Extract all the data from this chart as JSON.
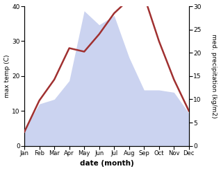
{
  "months": [
    "Jan",
    "Feb",
    "Mar",
    "Apr",
    "May",
    "Jun",
    "Jul",
    "Aug",
    "Sep",
    "Oct",
    "Nov",
    "Dec"
  ],
  "temperature": [
    4,
    13,
    19,
    28,
    27,
    32,
    38,
    42,
    43,
    30,
    19,
    10
  ],
  "precipitation": [
    3.5,
    9,
    10,
    14,
    29,
    26,
    28,
    19,
    12,
    12,
    11.5,
    7
  ],
  "temp_ylim": [
    0,
    40
  ],
  "precip_ylim": [
    0,
    30
  ],
  "temp_color": "#a03030",
  "precip_fill_color": "#b0bce8",
  "precip_fill_alpha": 0.65,
  "xlabel": "date (month)",
  "ylabel_left": "max temp (C)",
  "ylabel_right": "med. precipitation (kg/m2)",
  "bg_color": "#ffffff",
  "temp_linewidth": 1.8,
  "figsize": [
    3.18,
    2.47
  ],
  "dpi": 100
}
